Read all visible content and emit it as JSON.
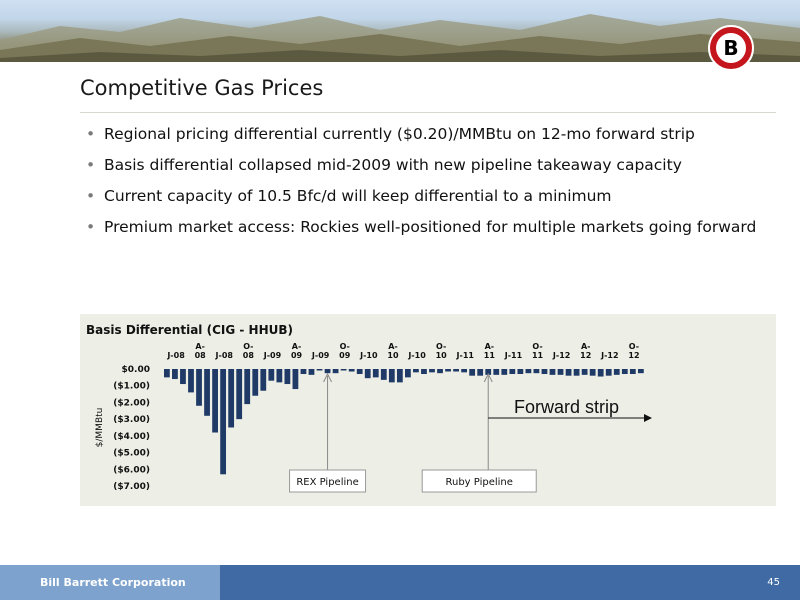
{
  "slide": {
    "title": "Competitive Gas Prices",
    "bullets": [
      "Regional pricing differential currently ($0.20)/MMBtu on 12-mo forward strip",
      "Basis differential collapsed mid-2009 with new pipeline takeaway capacity",
      "Current capacity of 10.5 Bfc/d will keep differential to a minimum",
      "Premium market access: Rockies well-positioned for multiple markets going forward"
    ],
    "bullet_glyph": "•",
    "logo_letter": "B"
  },
  "footer": {
    "company": "Bill Barrett Corporation",
    "page_number": "45"
  },
  "chart_data": {
    "type": "bar",
    "title": "Basis Differential (CIG - HHUB)",
    "ylabel": "$/MMBtu",
    "xlabel": "",
    "ylim": [
      -7,
      0
    ],
    "y_ticks": [
      "$0.00",
      "($1.00)",
      "($2.00)",
      "($3.00)",
      "($4.00)",
      "($5.00)",
      "($6.00)",
      "($7.00)"
    ],
    "x_tick_labels": [
      {
        "top": "",
        "bottom": "J-08"
      },
      {
        "top": "A-",
        "bottom": "08"
      },
      {
        "top": "",
        "bottom": "J-08"
      },
      {
        "top": "O-",
        "bottom": "08"
      },
      {
        "top": "",
        "bottom": "J-09"
      },
      {
        "top": "A-",
        "bottom": "09"
      },
      {
        "top": "",
        "bottom": "J-09"
      },
      {
        "top": "O-",
        "bottom": "09"
      },
      {
        "top": "",
        "bottom": "J-10"
      },
      {
        "top": "A-",
        "bottom": "10"
      },
      {
        "top": "",
        "bottom": "J-10"
      },
      {
        "top": "O-",
        "bottom": "10"
      },
      {
        "top": "",
        "bottom": "J-11"
      },
      {
        "top": "A-",
        "bottom": "11"
      },
      {
        "top": "",
        "bottom": "J-11"
      },
      {
        "top": "O-",
        "bottom": "11"
      },
      {
        "top": "",
        "bottom": "J-12"
      },
      {
        "top": "A-",
        "bottom": "12"
      },
      {
        "top": "",
        "bottom": "J-12"
      },
      {
        "top": "O-",
        "bottom": "12"
      }
    ],
    "values": [
      -0.5,
      -0.6,
      -0.9,
      -1.4,
      -2.2,
      -2.8,
      -3.8,
      -6.3,
      -3.5,
      -3.0,
      -2.1,
      -1.6,
      -1.3,
      -0.7,
      -0.8,
      -0.9,
      -1.2,
      -0.3,
      -0.35,
      -0.05,
      -0.25,
      -0.25,
      -0.05,
      -0.15,
      -0.3,
      -0.55,
      -0.5,
      -0.65,
      -0.8,
      -0.8,
      -0.5,
      -0.2,
      -0.3,
      -0.2,
      -0.25,
      -0.15,
      -0.15,
      -0.2,
      -0.4,
      -0.4,
      -0.35,
      -0.35,
      -0.35,
      -0.3,
      -0.3,
      -0.25,
      -0.25,
      -0.3,
      -0.35,
      -0.35,
      -0.4,
      -0.4,
      -0.35,
      -0.4,
      -0.45,
      -0.4,
      -0.35,
      -0.3,
      -0.3,
      -0.25
    ],
    "annotations": [
      {
        "label": "REX Pipeline",
        "bar_index": 20
      },
      {
        "label": "Ruby Pipeline",
        "bar_index": 40
      },
      {
        "label": "Forward strip",
        "from_bar_index": 40
      }
    ],
    "bar_color": "#1f3a66",
    "panel_color": "#edeee6",
    "grid": false,
    "legend": "none"
  },
  "colors": {
    "footer_blue": "#3f6aa3",
    "footer_light_blue": "#7da2cd",
    "logo_red": "#c4161c"
  }
}
